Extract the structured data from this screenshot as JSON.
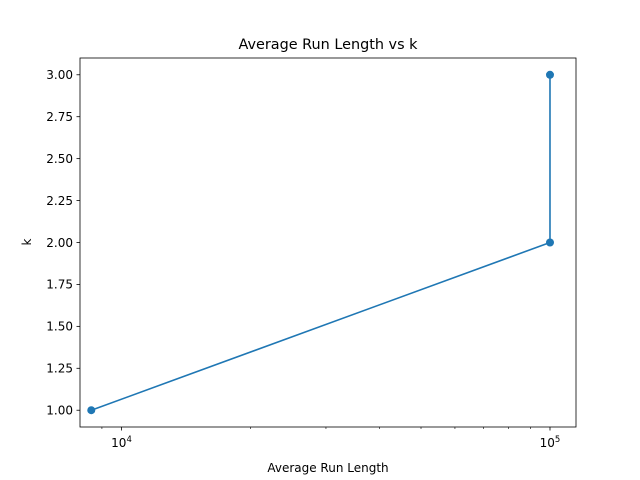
{
  "chart_data": {
    "type": "line",
    "title": "Average Run Length vs k",
    "xlabel": "Average Run Length",
    "ylabel": "k",
    "xscale": "log",
    "xlim": [
      8000,
      115000
    ],
    "ylim": [
      0.9,
      3.1
    ],
    "grid": false,
    "series": [
      {
        "x": [
          8500,
          100000,
          100000
        ],
        "y": [
          1.0,
          2.0,
          3.0
        ],
        "color": "#1f77b4",
        "marker": "circle"
      }
    ],
    "x_major_ticks": [
      {
        "value": 10000,
        "base": "10",
        "exp": "4"
      },
      {
        "value": 100000,
        "base": "10",
        "exp": "5"
      }
    ],
    "x_minor_ticks": [
      9000,
      20000,
      30000,
      40000,
      50000,
      60000,
      70000,
      80000,
      90000
    ],
    "y_ticks": [
      {
        "value": 1.0,
        "label": "1.00"
      },
      {
        "value": 1.25,
        "label": "1.25"
      },
      {
        "value": 1.5,
        "label": "1.50"
      },
      {
        "value": 1.75,
        "label": "1.75"
      },
      {
        "value": 2.0,
        "label": "2.00"
      },
      {
        "value": 2.25,
        "label": "2.25"
      },
      {
        "value": 2.5,
        "label": "2.50"
      },
      {
        "value": 2.75,
        "label": "2.75"
      },
      {
        "value": 3.0,
        "label": "3.00"
      }
    ]
  }
}
